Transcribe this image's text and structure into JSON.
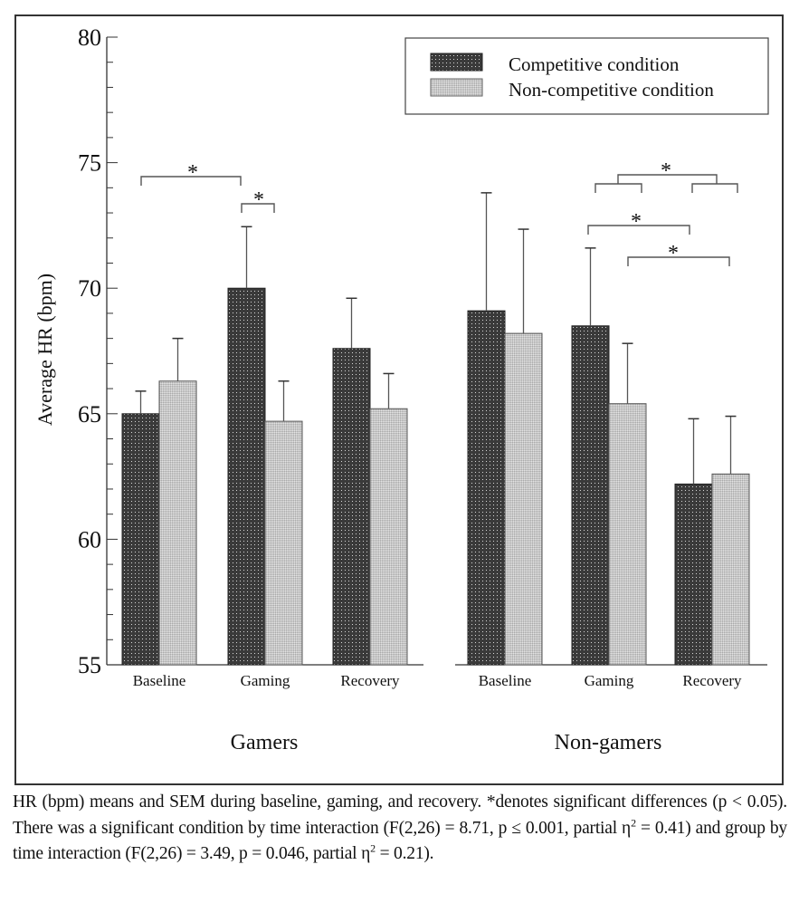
{
  "chart_data": {
    "type": "bar",
    "ylabel": "Average HR (bpm)",
    "xlabel": "",
    "ylim": [
      55,
      80
    ],
    "yticks": [
      55,
      60,
      65,
      70,
      75,
      80
    ],
    "yminor_step": 1,
    "grid": false,
    "legend_position": "top-right",
    "groups": [
      {
        "name": "Gamers",
        "categories": [
          "Baseline",
          "Gaming",
          "Recovery"
        ],
        "series": [
          {
            "name": "Competitive condition",
            "values": [
              65.0,
              70.0,
              67.6
            ],
            "sem": [
              0.9,
              2.45,
              2.0
            ]
          },
          {
            "name": "Non-competitive condition",
            "values": [
              66.3,
              64.7,
              65.2
            ],
            "sem": [
              1.7,
              1.6,
              1.4
            ]
          }
        ],
        "significance": [
          {
            "from": "Baseline/Competitive",
            "to": "Gaming/Competitive",
            "label": "*"
          },
          {
            "from": "Gaming/Competitive",
            "to": "Gaming/Non-competitive",
            "label": "*"
          }
        ]
      },
      {
        "name": "Non-gamers",
        "categories": [
          "Baseline",
          "Gaming",
          "Recovery"
        ],
        "series": [
          {
            "name": "Competitive condition",
            "values": [
              69.1,
              68.5,
              62.2
            ],
            "sem": [
              4.7,
              3.1,
              2.6
            ]
          },
          {
            "name": "Non-competitive condition",
            "values": [
              68.2,
              65.4,
              62.6
            ],
            "sem": [
              4.15,
              2.4,
              2.3
            ]
          }
        ],
        "significance": [
          {
            "from": "Gaming",
            "to": "Recovery",
            "label": "*"
          },
          {
            "from": "Gaming/Competitive",
            "to": "Recovery/Competitive",
            "label": "*"
          },
          {
            "from": "Gaming/Non-competitive",
            "to": "Recovery/Non-competitive",
            "label": "*"
          }
        ]
      }
    ],
    "legend": [
      "Competitive condition",
      "Non-competitive condition"
    ],
    "colors": {
      "competitive": "#3a3a3a",
      "non_competitive": "#bdbdbd"
    }
  },
  "caption": {
    "line1": "HR (bpm) means and SEM during baseline, gaming, and recovery. *denotes significant differences (p < 0.05). There was a significant condition by time interaction (F(2,26) = 8.71, p ≤ 0.001, partial η",
    "sup1": "2",
    "line2": " = 0.41) and group by time interaction (F(2,26) = 3.49, p = 0.046, partial η",
    "sup2": "2",
    "line3": " = 0.21)."
  }
}
